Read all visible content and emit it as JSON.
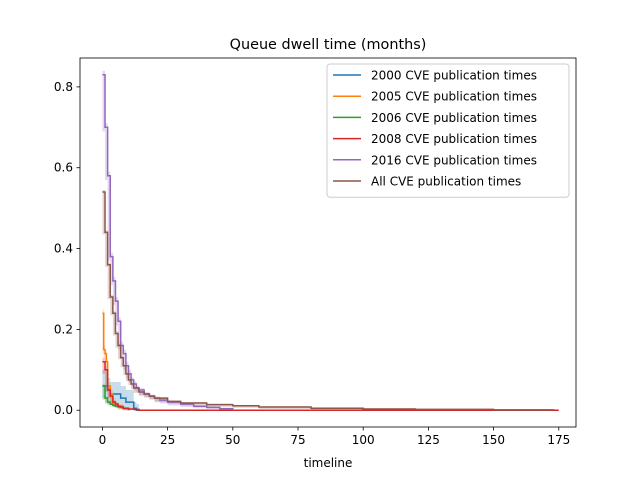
{
  "chart_data": {
    "type": "line",
    "title": "Queue dwell time (months)",
    "xlabel": "timeline",
    "ylabel": "",
    "xlim": [
      -8.6,
      181.6
    ],
    "ylim": [
      -0.0415,
      0.8715
    ],
    "xticks": [
      0,
      25,
      50,
      75,
      100,
      125,
      150,
      175
    ],
    "yticks": [
      0.0,
      0.2,
      0.4,
      0.6,
      0.8
    ],
    "ytick_labels": [
      "0.0",
      "0.2",
      "0.4",
      "0.6",
      "0.8"
    ],
    "grid": false,
    "legend_position": "top-right",
    "series": [
      {
        "name": "2000 CVE publication times",
        "color": "#1f77b4",
        "x": [
          0,
          1,
          2,
          3,
          4,
          5,
          6,
          7,
          8,
          9,
          10,
          12,
          13,
          14
        ],
        "y": [
          0.06,
          0.06,
          0.05,
          0.04,
          0.04,
          0.04,
          0.04,
          0.03,
          0.03,
          0.02,
          0.02,
          0.005,
          0.0,
          0.0
        ],
        "ci_upper": [
          0.1,
          0.1,
          0.08,
          0.07,
          0.07,
          0.07,
          0.07,
          0.06,
          0.06,
          0.05,
          0.05,
          0.02,
          0.015,
          0.0
        ],
        "ci_lower": [
          0.03,
          0.03,
          0.02,
          0.015,
          0.015,
          0.015,
          0.015,
          0.01,
          0.01,
          0.005,
          0.005,
          0.0,
          0.0,
          0.0
        ]
      },
      {
        "name": "2005 CVE publication times",
        "color": "#ff7f0e",
        "x": [
          0,
          0.5,
          1,
          1.5,
          2,
          3,
          4,
          5,
          6,
          8,
          10
        ],
        "y": [
          0.24,
          0.15,
          0.14,
          0.12,
          0.06,
          0.04,
          0.02,
          0.015,
          0.01,
          0.005,
          0.0
        ],
        "ci_upper": [
          0.25,
          0.16,
          0.15,
          0.13,
          0.07,
          0.05,
          0.03,
          0.02,
          0.015,
          0.008,
          0.0
        ],
        "ci_lower": [
          0.23,
          0.14,
          0.13,
          0.11,
          0.05,
          0.03,
          0.015,
          0.01,
          0.005,
          0.002,
          0.0
        ]
      },
      {
        "name": "2006 CVE publication times",
        "color": "#2ca02c",
        "x": [
          0,
          1,
          2,
          3,
          4,
          5,
          6,
          8,
          10
        ],
        "y": [
          0.06,
          0.03,
          0.02,
          0.015,
          0.012,
          0.01,
          0.008,
          0.004,
          0.0
        ],
        "ci_upper": [
          0.065,
          0.034,
          0.024,
          0.018,
          0.015,
          0.012,
          0.01,
          0.006,
          0.0
        ],
        "ci_lower": [
          0.055,
          0.026,
          0.016,
          0.012,
          0.009,
          0.008,
          0.006,
          0.002,
          0.0
        ]
      },
      {
        "name": "2008 CVE publication times",
        "color": "#d62728",
        "x": [
          0,
          1,
          2,
          3,
          4,
          5,
          6,
          7,
          8,
          10,
          12,
          14,
          175
        ],
        "y": [
          0.12,
          0.1,
          0.05,
          0.035,
          0.02,
          0.015,
          0.01,
          0.008,
          0.005,
          0.003,
          0.002,
          0.0,
          0.0
        ],
        "ci_upper": [
          0.13,
          0.11,
          0.055,
          0.04,
          0.025,
          0.018,
          0.013,
          0.01,
          0.007,
          0.004,
          0.003,
          0.0,
          0.0
        ],
        "ci_lower": [
          0.11,
          0.09,
          0.045,
          0.03,
          0.016,
          0.012,
          0.008,
          0.006,
          0.003,
          0.002,
          0.001,
          0.0,
          0.0
        ]
      },
      {
        "name": "2016 CVE publication times",
        "color": "#9467bd",
        "x": [
          0,
          1,
          2,
          3,
          4,
          5,
          6,
          7,
          8,
          9,
          10,
          11,
          12,
          13,
          14,
          16,
          18,
          20,
          22,
          25,
          30,
          35,
          40,
          45,
          50
        ],
        "y": [
          0.83,
          0.7,
          0.58,
          0.38,
          0.32,
          0.27,
          0.22,
          0.16,
          0.14,
          0.11,
          0.09,
          0.075,
          0.065,
          0.055,
          0.05,
          0.04,
          0.035,
          0.03,
          0.025,
          0.02,
          0.015,
          0.01,
          0.007,
          0.004,
          0.0
        ],
        "ci_upper": [
          0.84,
          0.71,
          0.59,
          0.39,
          0.33,
          0.28,
          0.23,
          0.17,
          0.15,
          0.12,
          0.1,
          0.082,
          0.071,
          0.061,
          0.055,
          0.045,
          0.039,
          0.034,
          0.028,
          0.023,
          0.018,
          0.012,
          0.009,
          0.005,
          0.0
        ],
        "ci_lower": [
          0.82,
          0.69,
          0.57,
          0.37,
          0.31,
          0.26,
          0.21,
          0.15,
          0.13,
          0.1,
          0.08,
          0.068,
          0.059,
          0.049,
          0.045,
          0.035,
          0.031,
          0.026,
          0.022,
          0.017,
          0.012,
          0.008,
          0.005,
          0.003,
          0.0
        ]
      },
      {
        "name": "All CVE publication times",
        "color": "#8c564b",
        "x": [
          0,
          1,
          2,
          3,
          4,
          5,
          6,
          7,
          8,
          9,
          10,
          11,
          12,
          14,
          16,
          18,
          20,
          25,
          30,
          40,
          50,
          60,
          80,
          100,
          120,
          150,
          173
        ],
        "y": [
          0.54,
          0.44,
          0.36,
          0.28,
          0.24,
          0.19,
          0.16,
          0.13,
          0.11,
          0.09,
          0.075,
          0.065,
          0.055,
          0.045,
          0.04,
          0.035,
          0.03,
          0.022,
          0.018,
          0.014,
          0.011,
          0.008,
          0.005,
          0.003,
          0.002,
          0.001,
          0.0
        ],
        "ci_upper": [
          0.545,
          0.445,
          0.365,
          0.285,
          0.245,
          0.195,
          0.165,
          0.134,
          0.113,
          0.093,
          0.078,
          0.068,
          0.058,
          0.047,
          0.042,
          0.037,
          0.032,
          0.024,
          0.02,
          0.016,
          0.013,
          0.01,
          0.007,
          0.005,
          0.004,
          0.003,
          0.0
        ],
        "ci_lower": [
          0.535,
          0.435,
          0.355,
          0.275,
          0.235,
          0.185,
          0.155,
          0.126,
          0.107,
          0.087,
          0.072,
          0.062,
          0.052,
          0.043,
          0.038,
          0.033,
          0.028,
          0.02,
          0.016,
          0.012,
          0.009,
          0.006,
          0.003,
          0.001,
          0.0,
          0.0,
          0.0
        ]
      }
    ]
  }
}
